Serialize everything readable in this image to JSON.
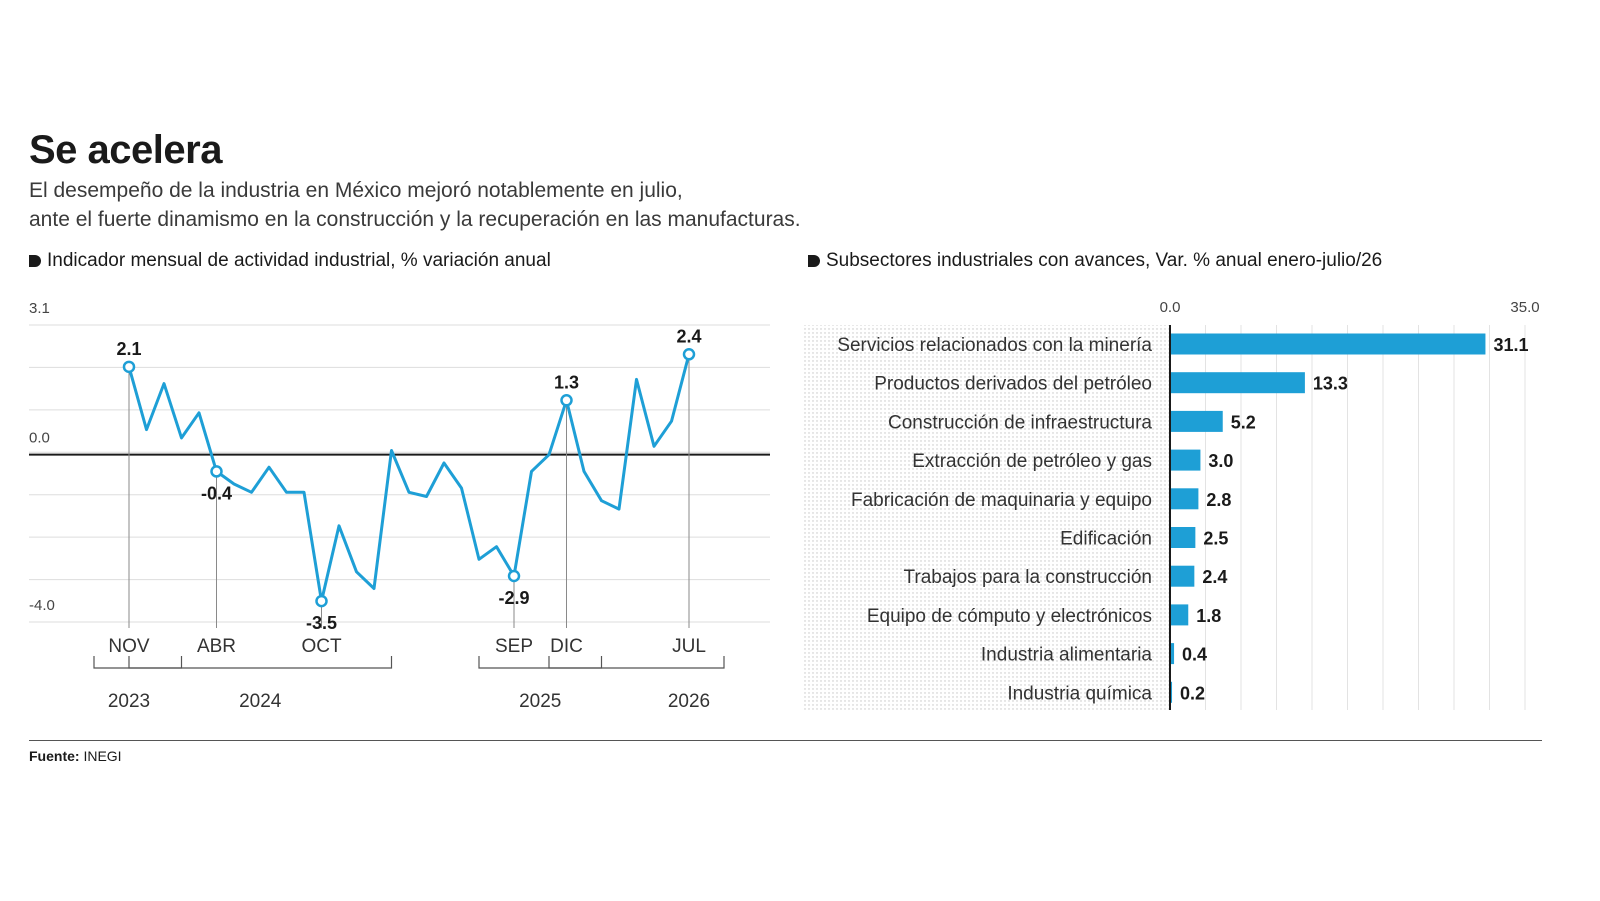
{
  "header": {
    "title": "Se acelera",
    "subtitle_line1": "El desempeño de la industria en México mejoró notablemente en julio,",
    "subtitle_line2": "ante el fuerte dinamismo en la construcción y la recuperación en las manufacturas."
  },
  "colors": {
    "accent": "#1e9fd6",
    "text": "#1a1a1a",
    "axis": "#1a1a1a",
    "grid": "#dddddd"
  },
  "chart_data": [
    {
      "type": "line",
      "title": "Indicador mensual de actividad industrial, % variación anual",
      "y_tick_labels": [
        "3.1",
        "0.0",
        "-4.0"
      ],
      "ylim": [
        -4.0,
        3.1
      ],
      "values": [
        2.1,
        0.6,
        1.7,
        0.4,
        1.0,
        -0.4,
        -0.7,
        -0.9,
        -0.3,
        -0.9,
        -0.9,
        -3.5,
        -1.7,
        -2.8,
        -3.2,
        0.1,
        -0.9,
        -1.0,
        -0.2,
        -0.8,
        -2.5,
        -2.2,
        -2.9,
        -0.4,
        0.0,
        1.3,
        -0.4,
        -1.1,
        -1.3,
        1.8,
        0.2,
        0.8,
        2.4
      ],
      "highlights": [
        {
          "index": 0,
          "label": "2.1",
          "month": "NOV"
        },
        {
          "index": 5,
          "label": "-0.4",
          "month": "ABR"
        },
        {
          "index": 11,
          "label": "-3.5",
          "month": "OCT"
        },
        {
          "index": 22,
          "label": "-2.9",
          "month": "SEP"
        },
        {
          "index": 25,
          "label": "1.3",
          "month": "DIC"
        },
        {
          "index": 32,
          "label": "2.4",
          "month": "JUL"
        }
      ],
      "years": [
        {
          "label": "2023",
          "from": 0,
          "to": 1
        },
        {
          "label": "2024",
          "from": 2,
          "to": 13
        },
        {
          "label": "2025",
          "from": 22,
          "to": 25
        },
        {
          "label": "2026",
          "from": 26,
          "to": 32
        }
      ]
    },
    {
      "type": "bar",
      "orientation": "horizontal",
      "title": "Subsectores industriales con avances, Var. % anual enero-julio/26",
      "x_tick_labels": [
        "0.0",
        "35.0"
      ],
      "xlim": [
        0,
        35
      ],
      "categories": [
        "Servicios relacionados con la minería",
        "Productos derivados del petróleo",
        "Construcción de infraestructura",
        "Extracción de petróleo y gas",
        "Fabricación de maquinaria y equipo",
        "Edificación",
        "Trabajos para la construcción",
        "Equipo de cómputo y electrónicos",
        "Industria alimentaria",
        "Industria química"
      ],
      "values": [
        31.1,
        13.3,
        5.2,
        3.0,
        2.8,
        2.5,
        2.4,
        1.8,
        0.4,
        0.2
      ],
      "labels": [
        "31.1",
        "13.3",
        "5.2",
        "3.0",
        "2.8",
        "2.5",
        "2.4",
        "1.8",
        "0.4",
        "0.2"
      ]
    }
  ],
  "footer": {
    "source_label": "Fuente:",
    "source_value": "INEGI"
  }
}
